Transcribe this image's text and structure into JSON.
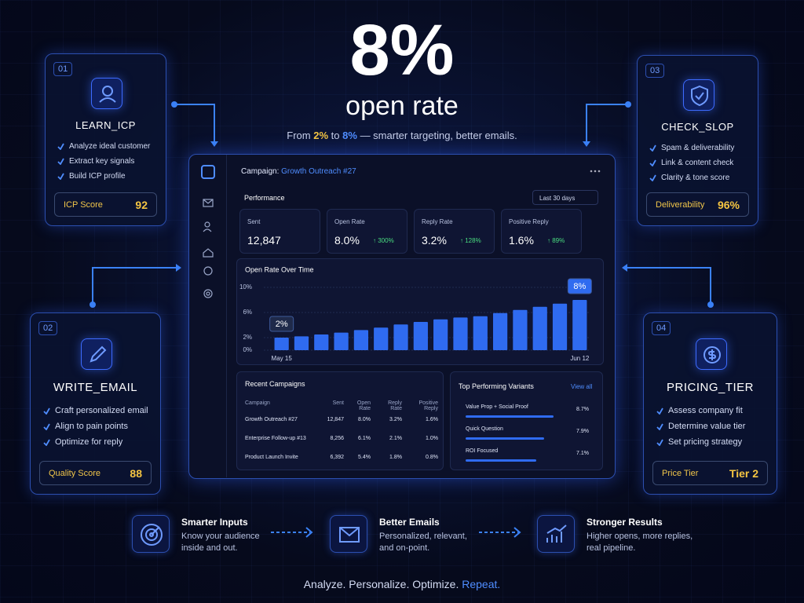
{
  "hero": {
    "big": "8%",
    "headline": "open rate",
    "sub_from": "From",
    "sub_a": "2%",
    "sub_to": "to",
    "sub_b": "8%",
    "sub_rest": "— smarter targeting, better emails."
  },
  "cards": [
    {
      "num": "01",
      "title": "LEARN_ICP",
      "items": [
        "Analyze ideal customer",
        "Extract key signals",
        "Build ICP profile"
      ],
      "score_label": "ICP Score",
      "score_value": "92"
    },
    {
      "num": "02",
      "title": "WRITE_EMAIL",
      "items": [
        "Craft personalized email",
        "Align to pain points",
        "Optimize for reply"
      ],
      "score_label": "Quality Score",
      "score_value": "88"
    },
    {
      "num": "03",
      "title": "CHECK_SLOP",
      "items": [
        "Spam & deliverability",
        "Link & content check",
        "Clarity & tone score"
      ],
      "score_label": "Deliverability",
      "score_value": "96%"
    },
    {
      "num": "04",
      "title": "PRICING_TIER",
      "items": [
        "Assess company fit",
        "Determine value tier",
        "Set pricing strategy"
      ],
      "score_label": "Price Tier",
      "score_value": "Tier 2"
    }
  ],
  "dashboard": {
    "campaign_label": "Campaign:",
    "campaign_name": "Growth Outreach #27",
    "section": "Performance",
    "range": "Last 30 days",
    "metrics": [
      {
        "label": "Sent",
        "value": "12,847",
        "change": ""
      },
      {
        "label": "Open Rate",
        "value": "8.0%",
        "change": "↑ 300%"
      },
      {
        "label": "Reply Rate",
        "value": "3.2%",
        "change": "↑ 128%"
      },
      {
        "label": "Positive Reply",
        "value": "1.6%",
        "change": "↑ 89%"
      }
    ],
    "table": {
      "title": "Recent Campaigns",
      "headers": [
        "Campaign",
        "Sent",
        "Open Rate",
        "Reply Rate",
        "Positive Reply"
      ],
      "rows": [
        [
          "Growth Outreach #27",
          "12,847",
          "8.0%",
          "3.2%",
          "1.6%"
        ],
        [
          "Enterprise Follow-up #13",
          "8,256",
          "6.1%",
          "2.1%",
          "1.0%"
        ],
        [
          "Product Launch Invite",
          "6,392",
          "5.4%",
          "1.8%",
          "0.8%"
        ]
      ]
    },
    "variants": {
      "title": "Top Performing Variants",
      "link": "View all",
      "items": [
        {
          "name": "Value Prop + Social Proof",
          "value": "8.7%"
        },
        {
          "name": "Quick Question",
          "value": "7.9%"
        },
        {
          "name": "ROI Focused",
          "value": "7.1%"
        }
      ]
    }
  },
  "chart_data": {
    "type": "bar",
    "title": "Open Rate Over Time",
    "color": "#2f6bf0",
    "categories": [
      "May 15",
      null,
      null,
      null,
      null,
      null,
      null,
      null,
      null,
      null,
      null,
      null,
      null,
      null,
      null,
      "Jun 12"
    ],
    "values": [
      2,
      2.2,
      2.5,
      2.8,
      3.2,
      3.6,
      4.1,
      4.5,
      4.9,
      5.2,
      5.4,
      5.9,
      6.4,
      6.9,
      7.4,
      8
    ],
    "value_labels": [
      "2%",
      null,
      null,
      null,
      null,
      null,
      null,
      null,
      null,
      null,
      null,
      null,
      null,
      null,
      null,
      "8%"
    ],
    "ylim": [
      0,
      10
    ],
    "yticks": [
      {
        "value": 0,
        "label": "0%"
      },
      {
        "value": 2,
        "label": "2%"
      },
      {
        "value": 6,
        "label": "6%"
      },
      {
        "value": 10,
        "label": "10%"
      }
    ]
  },
  "steps": [
    {
      "title": "Smarter Inputs",
      "desc": [
        "Know your audience",
        "inside and out."
      ]
    },
    {
      "title": "Better Emails",
      "desc": [
        "Personalized, relevant,",
        "and on-point."
      ]
    },
    {
      "title": "Stronger Results",
      "desc": [
        "Higher opens, more replies,",
        "real pipeline."
      ]
    }
  ],
  "tagline": {
    "main": "Analyze. Personalize. Optimize.",
    "accent": "Repeat."
  }
}
